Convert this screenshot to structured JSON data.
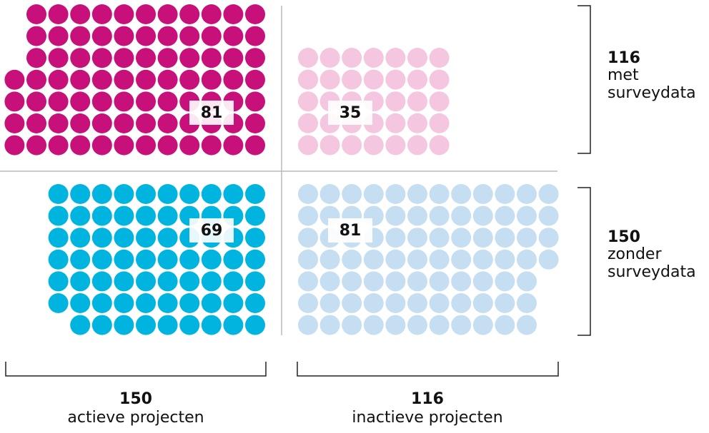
{
  "chart_data": {
    "type": "waffle",
    "quadrants": [
      {
        "count": 81,
        "color": "#c8107a"
      },
      {
        "count": 35,
        "color": "#f4c6df"
      },
      {
        "count": 69,
        "color": "#00b4e0"
      },
      {
        "count": 81,
        "color": "#c6def2"
      }
    ],
    "row_totals": [
      {
        "total": 116,
        "lines": [
          "met",
          "surveydata"
        ]
      },
      {
        "total": 150,
        "lines": [
          "zonder",
          "surveydata"
        ]
      }
    ],
    "column_totals": [
      {
        "total": 150,
        "label": "actieve projecten"
      },
      {
        "total": 116,
        "label": "inactieve projecten"
      }
    ]
  }
}
